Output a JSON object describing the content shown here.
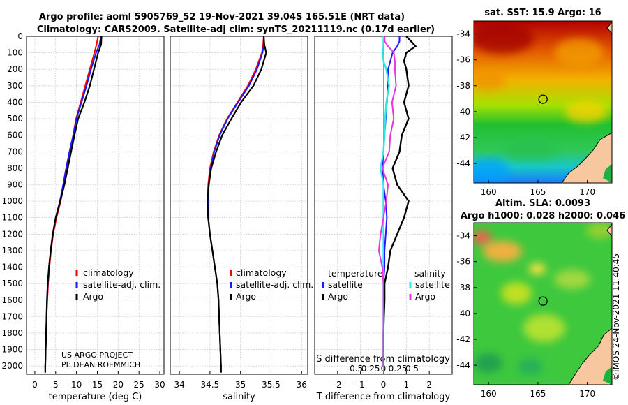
{
  "title_line1": "Argo profile: aoml 5905769_52 19-Nov-2021 39.04S 165.51E (NRT data)",
  "title_line2": "Climatology: CARS2009. Satellite-adj clim: synTS_20211119.nc (0.17d earlier)",
  "stamp": "©IMOS 24-Nov-2021 11:40:45",
  "colors": {
    "climatology": "#ff0000",
    "satellite": "#1a1aff",
    "argo": "#000000",
    "sal_sat": "#33e5e5",
    "sal_argo": "#e633e6",
    "land": "#f7c8a0"
  },
  "chart_data": [
    {
      "type": "line",
      "id": "temperature",
      "xlabel": "temperature (deg C)",
      "ylabel": "",
      "xlim": [
        -2,
        31
      ],
      "ylim": [
        2050,
        0
      ],
      "xticks": [
        "0",
        "5",
        "10",
        "15",
        "20",
        "25",
        "30"
      ],
      "yticks": [
        "0",
        "100",
        "200",
        "300",
        "400",
        "500",
        "600",
        "700",
        "800",
        "900",
        "1000",
        "1100",
        "1200",
        "1300",
        "1400",
        "1500",
        "1600",
        "1700",
        "1800",
        "1900",
        "2000"
      ],
      "depth": [
        0,
        50,
        100,
        200,
        300,
        400,
        500,
        600,
        700,
        800,
        900,
        1000,
        1100,
        1200,
        1300,
        1400,
        1500,
        1600,
        1700,
        1800,
        1900,
        2000,
        2040
      ],
      "series": [
        {
          "name": "climatology",
          "values": [
            15.2,
            14.8,
            14.3,
            13.2,
            12.1,
            11.0,
            9.9,
            9.2,
            8.4,
            7.6,
            6.9,
            6.2,
            5.2,
            4.4,
            3.9,
            3.5,
            3.2,
            3.0,
            2.8,
            2.7,
            2.6,
            2.5,
            2.5
          ]
        },
        {
          "name": "satellite-adj. clim.",
          "values": [
            15.9,
            15.5,
            14.7,
            13.5,
            12.4,
            11.2,
            10.0,
            9.2,
            8.3,
            7.5,
            6.8,
            6.0,
            5.0,
            4.3,
            3.8,
            3.4,
            3.1,
            2.9,
            2.8,
            2.7,
            2.6,
            2.5,
            2.5
          ]
        },
        {
          "name": "Argo",
          "values": [
            16.0,
            15.9,
            15.2,
            14.2,
            13.2,
            11.9,
            10.4,
            9.5,
            8.7,
            7.9,
            7.1,
            6.1,
            5.0,
            4.3,
            3.8,
            3.4,
            3.1,
            2.9,
            2.8,
            2.7,
            2.6,
            2.5,
            2.5
          ]
        }
      ],
      "legend": [
        "climatology",
        "satellite-adj. clim.",
        "Argo"
      ],
      "annotation": [
        "US ARGO PROJECT",
        "PI: DEAN ROEMMICH"
      ]
    },
    {
      "type": "line",
      "id": "salinity",
      "xlabel": "salinity",
      "xlim": [
        33.85,
        36.1
      ],
      "ylim": [
        2050,
        0
      ],
      "xticks": [
        "34",
        "34.5",
        "35",
        "35.5",
        "36"
      ],
      "depth": [
        0,
        50,
        100,
        200,
        300,
        400,
        500,
        600,
        700,
        800,
        900,
        1000,
        1100,
        1200,
        1300,
        1400,
        1500,
        1600,
        1700,
        1800,
        1900,
        2000,
        2040
      ],
      "series": [
        {
          "name": "climatology",
          "values": [
            35.38,
            35.37,
            35.35,
            35.25,
            35.12,
            34.95,
            34.78,
            34.65,
            34.56,
            34.5,
            34.47,
            34.46,
            34.47,
            34.5,
            34.54,
            34.58,
            34.62,
            34.64,
            34.65,
            34.66,
            34.67,
            34.68,
            34.68
          ]
        },
        {
          "name": "satellite-adj. clim.",
          "values": [
            35.38,
            35.38,
            35.36,
            35.27,
            35.14,
            34.96,
            34.79,
            34.66,
            34.57,
            34.51,
            34.48,
            34.47,
            34.47,
            34.5,
            34.54,
            34.58,
            34.62,
            34.64,
            34.65,
            34.66,
            34.67,
            34.68,
            34.68
          ]
        },
        {
          "name": "Argo",
          "values": [
            35.38,
            35.39,
            35.42,
            35.34,
            35.21,
            35.01,
            34.85,
            34.7,
            34.6,
            34.52,
            34.48,
            34.46,
            34.47,
            34.5,
            34.54,
            34.58,
            34.62,
            34.64,
            34.65,
            34.66,
            34.67,
            34.68,
            34.68
          ]
        }
      ],
      "legend": [
        "climatology",
        "satellite-adj. clim.",
        "Argo"
      ]
    },
    {
      "type": "line",
      "id": "difference",
      "xlabel": "T difference from climatology",
      "xlabel_top": "S difference from climatology",
      "xlim": [
        -3.0,
        3.0
      ],
      "ylim": [
        2050,
        0
      ],
      "xticks": [
        "-2",
        "-1",
        "0",
        "1",
        "2"
      ],
      "s_ticks": [
        "-0.5",
        "-0.25",
        "0",
        "0.25",
        "0.5"
      ],
      "depth": [
        0,
        30,
        60,
        100,
        150,
        200,
        300,
        400,
        500,
        600,
        700,
        800,
        900,
        1000,
        1100,
        1200,
        1300,
        1400,
        1500,
        1600,
        1700,
        1800,
        1900,
        2000
      ],
      "series": [
        {
          "name": "temperature satellite",
          "values": [
            0.7,
            0.7,
            0.6,
            0.4,
            0.3,
            0.2,
            0.2,
            0.15,
            0.1,
            0.05,
            0.0,
            -0.05,
            0.0,
            0.1,
            0.15,
            0.1,
            0.05,
            0.05,
            0.0,
            0.0,
            0.0,
            0.0,
            0.0,
            0.0
          ]
        },
        {
          "name": "temperature Argo",
          "values": [
            1.0,
            1.2,
            1.4,
            1.0,
            0.9,
            1.0,
            1.1,
            0.9,
            1.1,
            0.8,
            0.7,
            0.4,
            0.6,
            1.1,
            0.9,
            0.6,
            0.3,
            0.2,
            0.05,
            0.05,
            0.02,
            0.0,
            0.0,
            0.0
          ]
        },
        {
          "name": "salinity satellite",
          "values": [
            0.0,
            0.0,
            0.0,
            -0.02,
            0.0,
            0.05,
            0.1,
            0.05,
            0.03,
            0.02,
            0.0,
            -0.05,
            0.0,
            0.0,
            0.0,
            0.0,
            0.0,
            0.0,
            0.0,
            0.0,
            0.0,
            0.0,
            0.0,
            0.0
          ]
        },
        {
          "name": "salinity Argo",
          "values": [
            0.02,
            0.02,
            0.08,
            0.18,
            0.2,
            0.2,
            0.22,
            0.15,
            0.18,
            0.12,
            0.1,
            -0.02,
            0.08,
            0.05,
            0.0,
            -0.05,
            -0.08,
            -0.02,
            0.0,
            0.0,
            0.0,
            0.0,
            0.0,
            0.0
          ]
        }
      ],
      "legend_temperature_title": "temperature",
      "legend_salinity_title": "salinity",
      "legend_temperature": [
        "satellite",
        "Argo"
      ],
      "legend_salinity": [
        "satellite",
        "Argo"
      ]
    },
    {
      "type": "heatmap",
      "id": "sst_map",
      "title": "sat. SST: 15.9 Argo: 16",
      "xticks": [
        "160",
        "165",
        "170"
      ],
      "yticks": [
        "-34",
        "-36",
        "-38",
        "-40",
        "-42",
        "-44"
      ],
      "xlim": [
        158.5,
        172.5
      ],
      "ylim": [
        -45.5,
        -33.0
      ],
      "marker": {
        "lon": 165.51,
        "lat": -39.04
      }
    },
    {
      "type": "heatmap",
      "id": "sla_map",
      "title": "Altim. SLA: 0.0093",
      "subtitle": "Argo h1000: 0.028 h2000: 0.046",
      "xticks": [
        "160",
        "165",
        "170"
      ],
      "yticks": [
        "-34",
        "-36",
        "-38",
        "-40",
        "-42",
        "-44"
      ],
      "xlim": [
        158.5,
        172.5
      ],
      "ylim": [
        -45.5,
        -33.0
      ],
      "marker": {
        "lon": 165.51,
        "lat": -39.04
      }
    }
  ]
}
